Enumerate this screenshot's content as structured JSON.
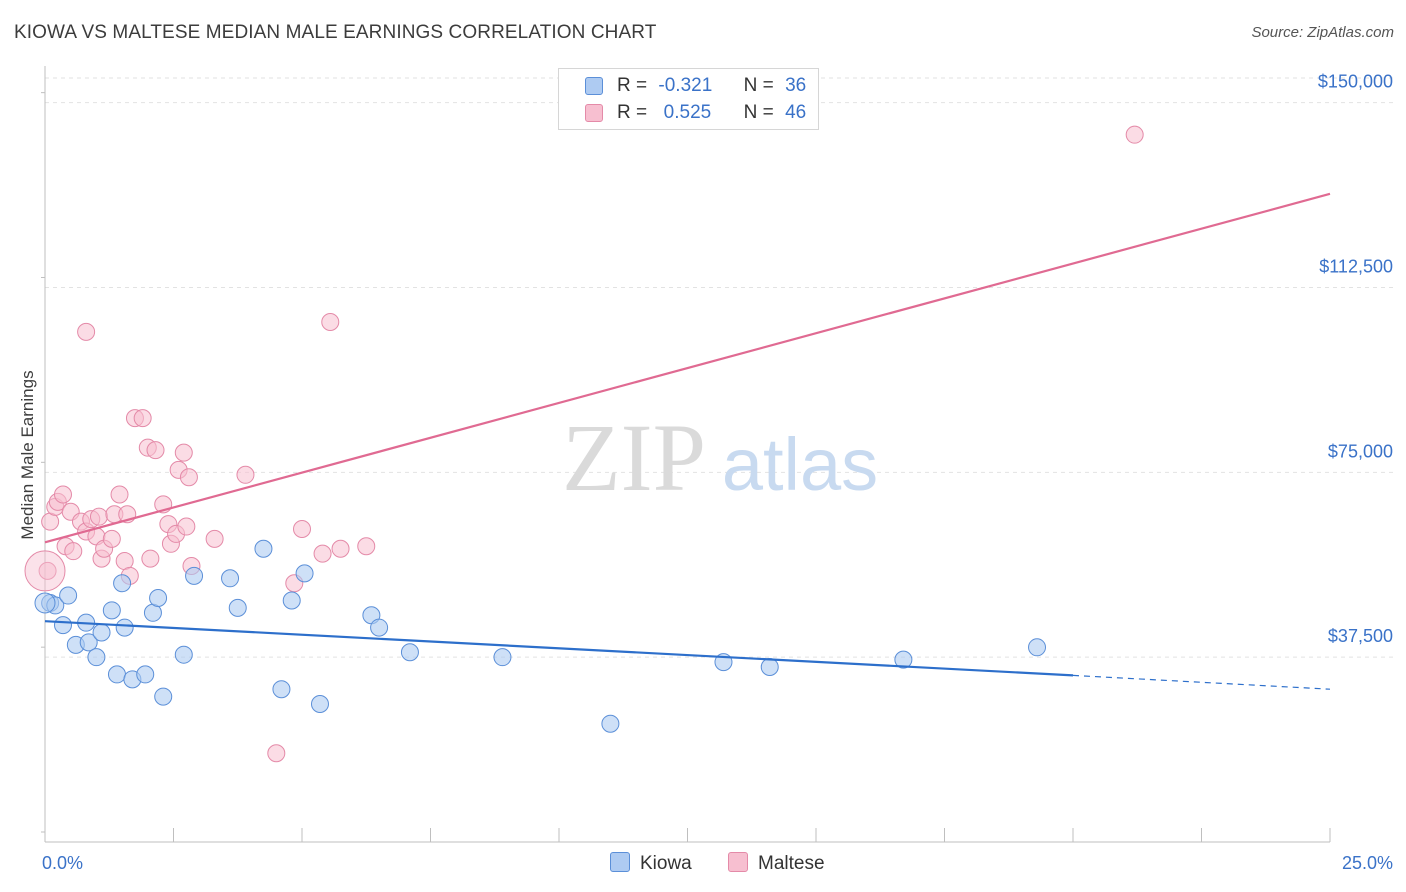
{
  "title": "KIOWA VS MALTESE MEDIAN MALE EARNINGS CORRELATION CHART",
  "source": "Source: ZipAtlas.com",
  "watermark": {
    "zip": "ZIP",
    "atlas": "atlas"
  },
  "colors": {
    "kiowa_fill": "#aecbf2",
    "kiowa_stroke": "#5b8fd8",
    "kiowa_line": "#2d6fcb",
    "maltese_fill": "#f7bfd0",
    "maltese_stroke": "#e48aa8",
    "maltese_line": "#e06a92",
    "tick_text": "#3a72c8",
    "grid": "#e2e2e2"
  },
  "legend": {
    "rows": [
      {
        "r_label": "R =",
        "r_value": "-0.321",
        "n_label": "N =",
        "n_value": "36"
      },
      {
        "r_label": "R =",
        "r_value": " 0.525",
        "n_label": "N =",
        "n_value": "46"
      }
    ]
  },
  "chart_data": {
    "type": "scatter",
    "title": "KIOWA VS MALTESE MEDIAN MALE EARNINGS CORRELATION CHART",
    "xlabel": "",
    "ylabel": "Median Male Earnings",
    "xlim": [
      0,
      25
    ],
    "ylim": [
      0,
      155000
    ],
    "x_tick_labels": [
      "0.0%",
      "25.0%"
    ],
    "y_ticks": [
      37500,
      75000,
      112500,
      150000
    ],
    "y_tick_labels": [
      "$37,500",
      "$75,000",
      "$112,500",
      "$150,000"
    ],
    "grid": true,
    "legend_position": "top-center",
    "series": [
      {
        "name": "Kiowa",
        "points": [
          [
            0.1,
            48500
          ],
          [
            0.2,
            48000
          ],
          [
            0.45,
            50000
          ],
          [
            0.35,
            44000
          ],
          [
            0.8,
            44500
          ],
          [
            0.6,
            40000
          ],
          [
            0.85,
            40500
          ],
          [
            1.0,
            37500
          ],
          [
            1.1,
            42500
          ],
          [
            1.3,
            47000
          ],
          [
            1.55,
            43500
          ],
          [
            1.5,
            52500
          ],
          [
            1.4,
            34000
          ],
          [
            1.7,
            33000
          ],
          [
            1.95,
            34000
          ],
          [
            2.1,
            46500
          ],
          [
            2.2,
            49500
          ],
          [
            2.3,
            29500
          ],
          [
            2.7,
            38000
          ],
          [
            2.9,
            54000
          ],
          [
            3.6,
            53500
          ],
          [
            3.75,
            47500
          ],
          [
            4.25,
            59500
          ],
          [
            4.6,
            31000
          ],
          [
            4.8,
            49000
          ],
          [
            5.05,
            54500
          ],
          [
            5.35,
            28000
          ],
          [
            6.35,
            46000
          ],
          [
            6.5,
            43500
          ],
          [
            7.1,
            38500
          ],
          [
            8.9,
            37500
          ],
          [
            11.0,
            24000
          ],
          [
            13.2,
            36500
          ],
          [
            14.1,
            35500
          ],
          [
            16.7,
            37000
          ],
          [
            19.3,
            39500
          ]
        ],
        "trend": {
          "x0": 0,
          "y0": 44800,
          "x1": 20,
          "y1": 33800,
          "dash_x1": 25,
          "dash_y1": 31000
        }
      },
      {
        "name": "Maltese",
        "points": [
          [
            0.05,
            55000
          ],
          [
            0.1,
            65000
          ],
          [
            0.2,
            68000
          ],
          [
            0.25,
            69000
          ],
          [
            0.35,
            70500
          ],
          [
            0.4,
            60000
          ],
          [
            0.5,
            67000
          ],
          [
            0.55,
            59000
          ],
          [
            0.7,
            65000
          ],
          [
            0.8,
            63000
          ],
          [
            0.9,
            65500
          ],
          [
            1.0,
            62000
          ],
          [
            1.05,
            66000
          ],
          [
            1.1,
            57500
          ],
          [
            1.15,
            59500
          ],
          [
            1.3,
            61500
          ],
          [
            1.35,
            66500
          ],
          [
            1.45,
            70500
          ],
          [
            1.55,
            57000
          ],
          [
            1.6,
            66500
          ],
          [
            1.65,
            54000
          ],
          [
            1.75,
            86000
          ],
          [
            1.9,
            86000
          ],
          [
            2.0,
            80000
          ],
          [
            2.05,
            57500
          ],
          [
            2.15,
            79500
          ],
          [
            2.3,
            68500
          ],
          [
            2.4,
            64500
          ],
          [
            2.45,
            60500
          ],
          [
            2.55,
            62500
          ],
          [
            2.6,
            75500
          ],
          [
            2.7,
            79000
          ],
          [
            2.75,
            64000
          ],
          [
            2.8,
            74000
          ],
          [
            2.85,
            56000
          ],
          [
            3.3,
            61500
          ],
          [
            3.9,
            74500
          ],
          [
            4.5,
            18000
          ],
          [
            4.85,
            52500
          ],
          [
            5.0,
            63500
          ],
          [
            5.4,
            58500
          ],
          [
            5.55,
            105500
          ],
          [
            5.75,
            59500
          ],
          [
            6.25,
            60000
          ],
          [
            0.8,
            103500
          ],
          [
            21.2,
            143500
          ]
        ],
        "trend": {
          "x0": 0,
          "y0": 60800,
          "x1": 25,
          "y1": 131500
        }
      }
    ]
  }
}
